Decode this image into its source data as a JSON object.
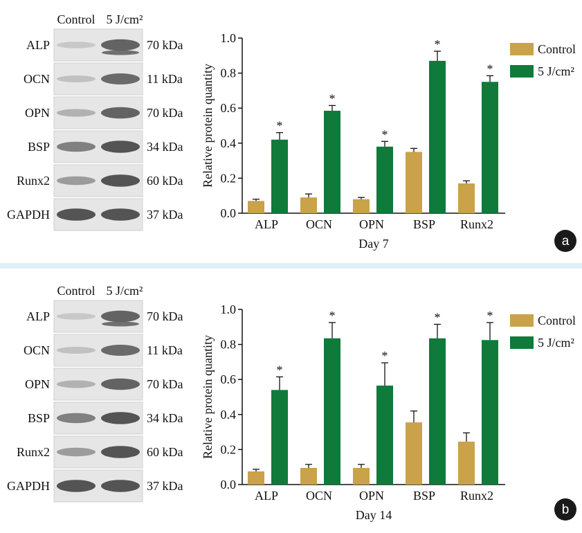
{
  "colors": {
    "control": "#c9a24a",
    "treated": "#0f7a3a",
    "badge": "#1a1a1a"
  },
  "panels": [
    {
      "label": "a",
      "blot": {
        "columns": [
          "Control",
          "5 J/cm²"
        ],
        "rows": [
          {
            "name": "ALP",
            "kda": "70 kDa"
          },
          {
            "name": "OCN",
            "kda": "11 kDa"
          },
          {
            "name": "OPN",
            "kda": "70 kDa"
          },
          {
            "name": "BSP",
            "kda": "34 kDa"
          },
          {
            "name": "Runx2",
            "kda": "60 kDa"
          },
          {
            "name": "GAPDH",
            "kda": "37 kDa"
          }
        ]
      },
      "chart_data": {
        "type": "bar",
        "categories": [
          "ALP",
          "OCN",
          "OPN",
          "BSP",
          "Runx2"
        ],
        "series": [
          {
            "name": "Control",
            "values": [
              0.07,
              0.09,
              0.08,
              0.35,
              0.17
            ],
            "errors": [
              0.01,
              0.02,
              0.01,
              0.02,
              0.015
            ]
          },
          {
            "name": "5 J/cm²",
            "values": [
              0.42,
              0.585,
              0.38,
              0.87,
              0.75
            ],
            "errors": [
              0.04,
              0.03,
              0.03,
              0.055,
              0.035
            ]
          }
        ],
        "significance": [
          "*",
          "*",
          "*",
          "*",
          "*"
        ],
        "xlabel": "Day 7",
        "ylabel": "Relative protein quantity",
        "ylim": [
          0,
          1.0
        ],
        "yticks": [
          "0.0",
          "0.2",
          "0.4",
          "0.6",
          "0.8",
          "1.0"
        ],
        "legend": "right"
      }
    },
    {
      "label": "b",
      "blot": {
        "columns": [
          "Control",
          "5 J/cm²"
        ],
        "rows": [
          {
            "name": "ALP",
            "kda": "70 kDa"
          },
          {
            "name": "OCN",
            "kda": "11 kDa"
          },
          {
            "name": "OPN",
            "kda": "70 kDa"
          },
          {
            "name": "BSP",
            "kda": "34 kDa"
          },
          {
            "name": "Runx2",
            "kda": "60 kDa"
          },
          {
            "name": "GAPDH",
            "kda": "37 kDa"
          }
        ]
      },
      "chart_data": {
        "type": "bar",
        "categories": [
          "ALP",
          "OCN",
          "OPN",
          "BSP",
          "Runx2"
        ],
        "series": [
          {
            "name": "Control",
            "values": [
              0.075,
              0.095,
              0.095,
              0.355,
              0.245
            ],
            "errors": [
              0.012,
              0.02,
              0.02,
              0.065,
              0.05
            ]
          },
          {
            "name": "5 J/cm²",
            "values": [
              0.54,
              0.835,
              0.565,
              0.835,
              0.825
            ],
            "errors": [
              0.075,
              0.09,
              0.13,
              0.08,
              0.1
            ]
          }
        ],
        "significance": [
          "*",
          "*",
          "*",
          "*",
          "*"
        ],
        "xlabel": "Day 14",
        "ylabel": "Relative protein quantity",
        "ylim": [
          0,
          1.0
        ],
        "yticks": [
          "0.0",
          "0.2",
          "0.4",
          "0.6",
          "0.8",
          "1.0"
        ],
        "legend": "right"
      }
    }
  ]
}
